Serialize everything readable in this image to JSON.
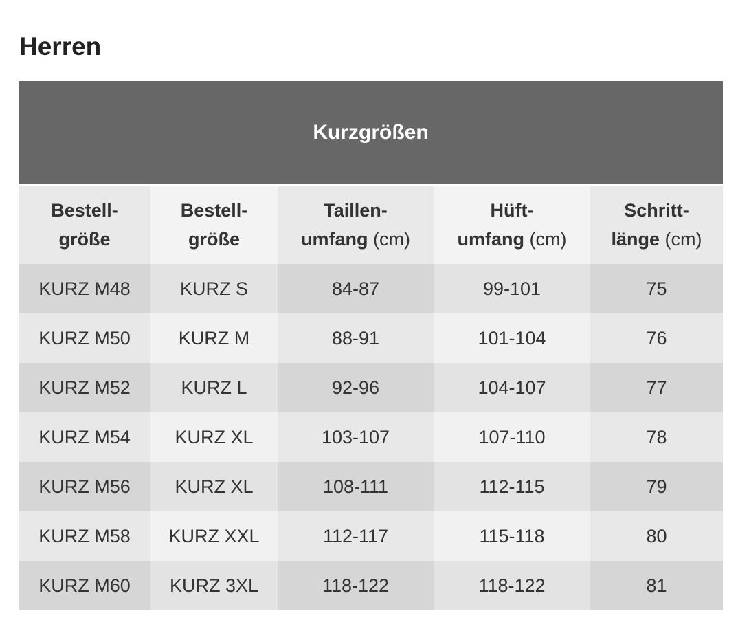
{
  "header": {
    "title": "Herren"
  },
  "table": {
    "title": "Kurzgrößen",
    "columns": [
      {
        "lines": [
          "Bestell-",
          "größe"
        ]
      },
      {
        "lines": [
          "Bestell-",
          "größe"
        ]
      },
      {
        "lines": [
          "Taillen-",
          "umfang"
        ],
        "unit": "(cm)"
      },
      {
        "lines": [
          "Hüft-",
          "umfang"
        ],
        "unit": "(cm)"
      },
      {
        "lines": [
          "Schritt-",
          "länge"
        ],
        "unit": "(cm)"
      }
    ],
    "rows": [
      [
        "KURZ M48",
        "KURZ S",
        "84-87",
        "99-101",
        "75"
      ],
      [
        "KURZ M50",
        "KURZ M",
        "88-91",
        "101-104",
        "76"
      ],
      [
        "KURZ M52",
        "KURZ L",
        "92-96",
        "104-107",
        "77"
      ],
      [
        "KURZ M54",
        "KURZ XL",
        "103-107",
        "107-110",
        "78"
      ],
      [
        "KURZ M56",
        "KURZ XL",
        "108-111",
        "112-115",
        "79"
      ],
      [
        "KURZ M58",
        "KURZ XXL",
        "112-117",
        "115-118",
        "80"
      ],
      [
        "KURZ M60",
        "KURZ 3XL",
        "118-122",
        "118-122",
        "81"
      ]
    ]
  }
}
